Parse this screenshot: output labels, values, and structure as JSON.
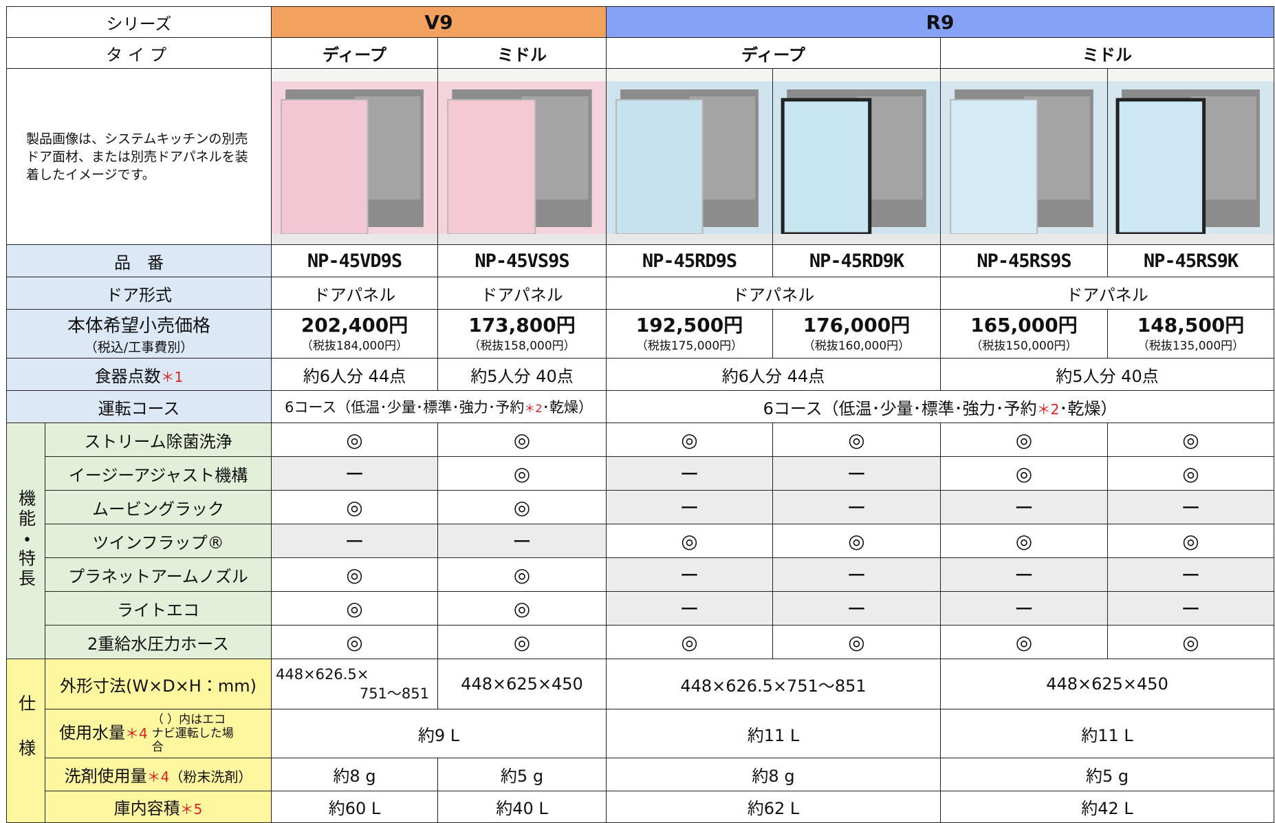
{
  "header": {
    "series_label": "シリーズ",
    "series": [
      "V9",
      "R9"
    ],
    "type_label": "タイプ",
    "types": [
      "ディープ",
      "ミドル",
      "ディープ",
      "ミドル"
    ]
  },
  "image_note": "製品画像は、システムキッチンの別売ドア面材、または別売ドアパネルを装着したイメージです。",
  "models": {
    "label": "品　番",
    "values": [
      "NP-45VD9S",
      "NP-45VS9S",
      "NP-45RD9S",
      "NP-45RD9K",
      "NP-45RS9S",
      "NP-45RS9K"
    ]
  },
  "door": {
    "label": "ドア形式",
    "values": [
      "ドアパネル",
      "ドアパネル",
      "ドアパネル",
      "ドアパネル"
    ]
  },
  "price": {
    "label": "本体希望小売価格",
    "sublabel": "（税込/工事費別）",
    "values": [
      "202,400円",
      "173,800円",
      "192,500円",
      "176,000円",
      "165,000円",
      "148,500円"
    ],
    "excl": [
      "（税抜184,000円）",
      "（税抜158,000円）",
      "（税抜175,000円）",
      "（税抜160,000円）",
      "（税抜150,000円）",
      "（税抜135,000円）"
    ]
  },
  "dish": {
    "label": "食器点数",
    "note": "＊1",
    "values": [
      "約6人分 44点",
      "約5人分 40点",
      "約6人分 44点",
      "約5人分 40点"
    ]
  },
  "course": {
    "label": "運転コース",
    "values": [
      {
        "text": "6コース（低温･少量･標準･強力･予約",
        "note": "＊2",
        "tail": "･乾燥）"
      },
      {
        "text": "6コース（低温･少量･標準･強力･予約",
        "note": "＊2",
        "tail": "･乾燥）"
      }
    ]
  },
  "features": {
    "group": "機能・特長",
    "rows": [
      {
        "label": "ストリーム除菌洗浄",
        "values": [
          "◎",
          "◎",
          "◎",
          "◎",
          "◎",
          "◎"
        ]
      },
      {
        "label": "イージーアジャスト機構",
        "values": [
          "ー",
          "◎",
          "ー",
          "ー",
          "◎",
          "◎"
        ]
      },
      {
        "label": "ムービングラック",
        "values": [
          "◎",
          "◎",
          "ー",
          "ー",
          "ー",
          "ー"
        ]
      },
      {
        "label": "ツインフラップ®",
        "values": [
          "ー",
          "ー",
          "◎",
          "◎",
          "◎",
          "◎"
        ]
      },
      {
        "label": "プラネットアームノズル",
        "values": [
          "◎",
          "◎",
          "ー",
          "ー",
          "ー",
          "ー"
        ]
      },
      {
        "label": "ライトエコ",
        "values": [
          "◎",
          "◎",
          "ー",
          "ー",
          "ー",
          "ー"
        ]
      },
      {
        "label": "2重給水圧力ホース",
        "values": [
          "◎",
          "◎",
          "◎",
          "◎",
          "◎",
          "◎"
        ]
      }
    ]
  },
  "spec": {
    "group": "仕様",
    "size": {
      "label": "外形寸法(W×D×H：mm)",
      "values": [
        [
          "448×626.5×",
          "751～851"
        ],
        "448×625×450",
        "448×626.5×751～851",
        "448×625×450"
      ]
    },
    "water": {
      "label": "使用水量",
      "note": "＊4",
      "remark": "（ ）内はエコナビ運転した場合",
      "values": [
        "約9 L",
        "約11 L",
        "約11 L"
      ]
    },
    "detergent": {
      "label": "洗剤使用量",
      "note": "＊4",
      "suffix": "（粉末洗剤）",
      "values": [
        "約8 g",
        "約5 g",
        "約8 g",
        "約5 g"
      ]
    },
    "capacity": {
      "label": "庫内容積",
      "note": "＊5",
      "values": [
        "約60 L",
        "約40 L",
        "約62 L",
        "約42 L"
      ]
    }
  }
}
